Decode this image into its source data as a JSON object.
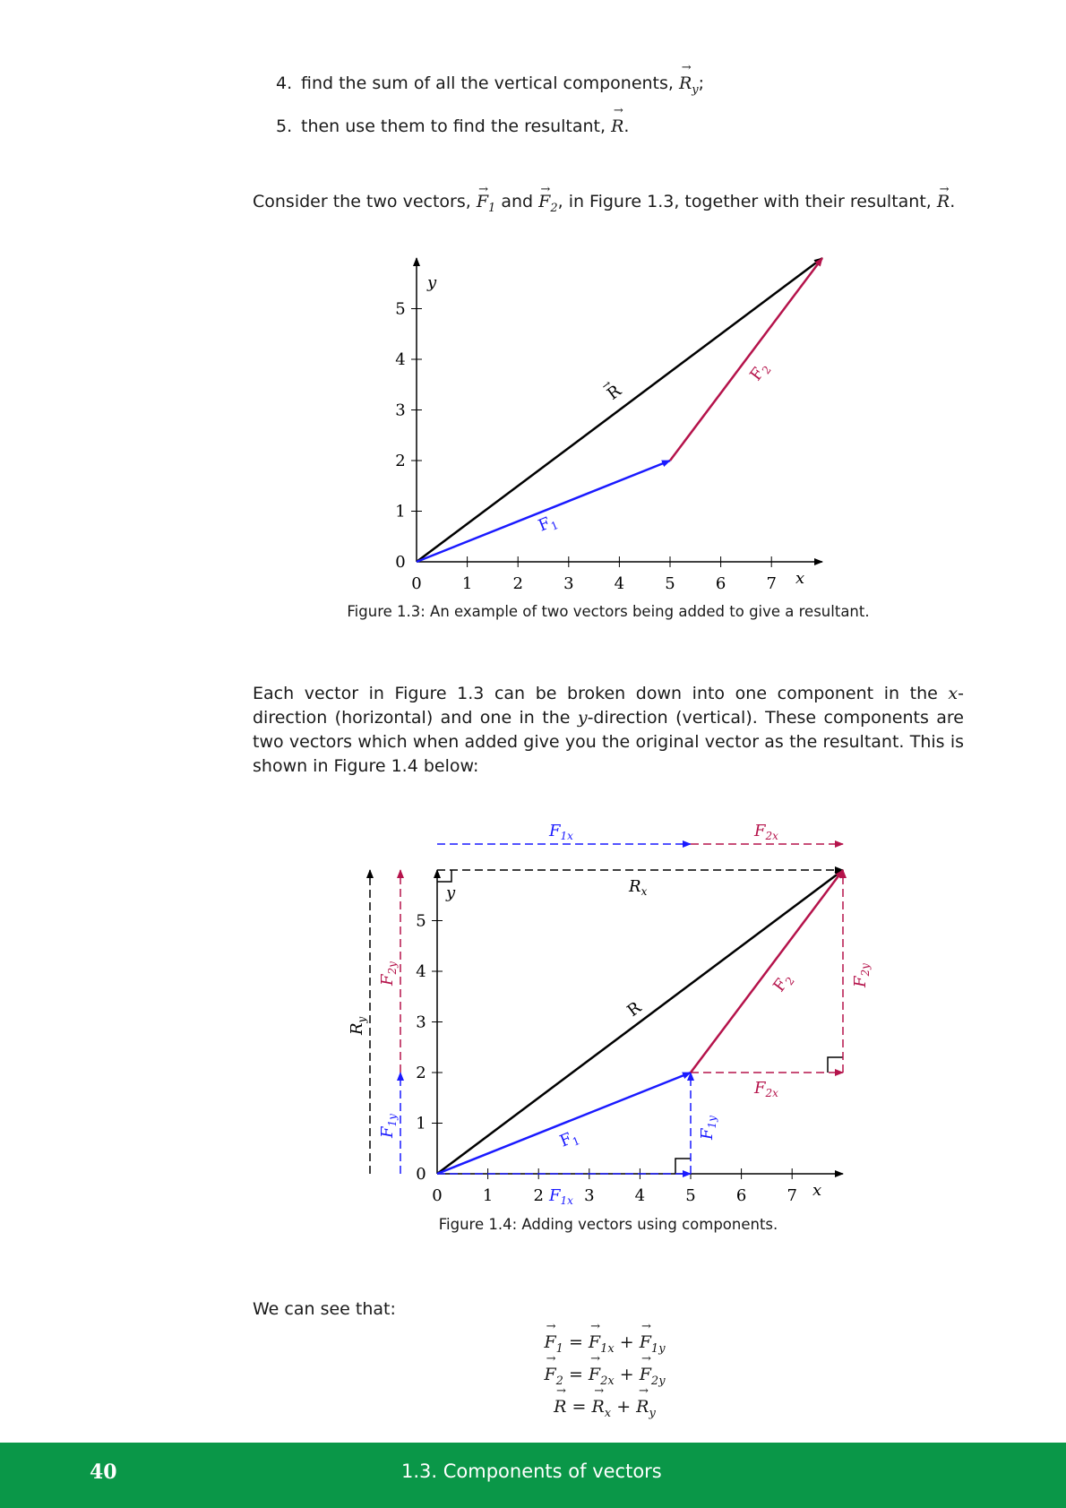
{
  "steps": [
    {
      "num": "4.",
      "text": "find the sum of all the vertical components, ",
      "sym": "R",
      "sub": "y",
      "end": ";"
    },
    {
      "num": "5.",
      "text": "then use them to find the resultant, ",
      "sym": "R",
      "sub": "",
      "end": "."
    }
  ],
  "para1": {
    "t1": "Consider the two vectors, ",
    "s1": "F",
    "sub1": "1",
    "t2": " and ",
    "s2": "F",
    "sub2": "2",
    "t3": ", in Figure 1.3, together with their resultant, ",
    "s3": "R",
    "t4": "."
  },
  "fig13": {
    "caption": "Figure 1.3:  An example of two vectors being added to give a resultant.",
    "axis_x": "x",
    "axis_y": "y",
    "x_ticks": [
      "0",
      "1",
      "2",
      "3",
      "4",
      "5",
      "6",
      "7"
    ],
    "y_ticks": [
      "0",
      "1",
      "2",
      "3",
      "4",
      "5"
    ],
    "lbl_R": "R",
    "lbl_F1": "F",
    "lbl_F1_sub": "1",
    "lbl_F2": "F",
    "lbl_F2_sub": "2"
  },
  "para2": {
    "t1": "Each vector in Figure 1.3 can be broken down into one component in the ",
    "x": "x",
    "t2": "-direction (horizontal) and one in the ",
    "y": "y",
    "t3": "-direction (vertical).  These components are two vectors which when added give you the original vector as the resultant.  This is shown in Figure 1.4 below:"
  },
  "fig14": {
    "caption": "Figure 1.4:  Adding vectors using components.",
    "axis_x": "x",
    "axis_y": "y",
    "x_ticks": [
      "0",
      "1",
      "2",
      "3",
      "4",
      "5",
      "6",
      "7"
    ],
    "y_ticks": [
      "0",
      "1",
      "2",
      "3",
      "4",
      "5"
    ],
    "lbl_F1x": "F",
    "lbl_F1x_sub": "1x",
    "lbl_F2x": "F",
    "lbl_F2x_sub": "2x",
    "lbl_Rx": "R",
    "lbl_Rx_sub": "x",
    "lbl_Ry": "R",
    "lbl_Ry_sub": "y",
    "lbl_F1y": "F",
    "lbl_F1y_sub": "1y",
    "lbl_F2y": "F",
    "lbl_F2y_sub": "2y",
    "lbl_R": "R",
    "lbl_F1": "F",
    "lbl_F1_sub": "1",
    "lbl_F2": "F",
    "lbl_F2_sub": "2"
  },
  "para3": "We can see that:",
  "equations": [
    {
      "lhs": "F",
      "lhs_sub": "1",
      "a": "F",
      "a_sub": "1x",
      "b": "F",
      "b_sub": "1y"
    },
    {
      "lhs": "F",
      "lhs_sub": "2",
      "a": "F",
      "a_sub": "2x",
      "b": "F",
      "b_sub": "2y"
    },
    {
      "lhs": "R",
      "lhs_sub": "",
      "a": "R",
      "a_sub": "x",
      "b": "R",
      "b_sub": "y"
    }
  ],
  "footer": {
    "page": "40",
    "section": "1.3.   Components of vectors"
  },
  "colors": {
    "blue": "#1a1aff",
    "crimson": "#b5134b",
    "black": "#000000",
    "green": "#0a9748"
  }
}
